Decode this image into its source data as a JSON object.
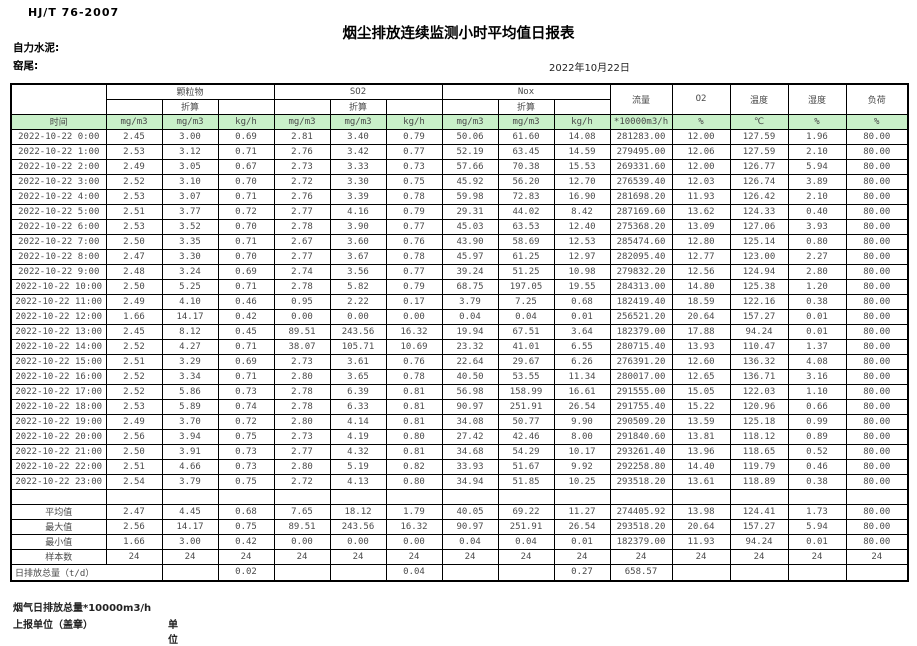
{
  "page": {
    "standard": "HJ/T 76-2007",
    "title": "烟尘排放连续监测小时平均值日报表",
    "company": "自力水泥:",
    "kiln": "窑尾:",
    "date": "2022年10月22日"
  },
  "table": {
    "time_header": "时间",
    "zhe_suan": "折算",
    "groups": {
      "pm": "颗粒物",
      "so2": "SO2",
      "nox": "Nox"
    },
    "single_cols": {
      "flow": "流量",
      "o2": "O2",
      "temp": "温度",
      "humidity": "湿度",
      "load": "负荷"
    },
    "units": [
      "mg/m3",
      "mg/m3",
      "kg/h",
      "mg/m3",
      "mg/m3",
      "kg/h",
      "mg/m3",
      "mg/m3",
      "kg/h",
      "*10000m3/h",
      "%",
      "℃",
      "%",
      "%"
    ],
    "rows": [
      [
        "2022-10-22 0:00",
        "2.45",
        "3.00",
        "0.69",
        "2.81",
        "3.40",
        "0.79",
        "50.06",
        "61.60",
        "14.08",
        "281283.00",
        "12.00",
        "127.59",
        "1.96",
        "80.00"
      ],
      [
        "2022-10-22 1:00",
        "2.53",
        "3.12",
        "0.71",
        "2.76",
        "3.42",
        "0.77",
        "52.19",
        "63.45",
        "14.59",
        "279495.00",
        "12.06",
        "127.59",
        "2.10",
        "80.00"
      ],
      [
        "2022-10-22 2:00",
        "2.49",
        "3.05",
        "0.67",
        "2.73",
        "3.33",
        "0.73",
        "57.66",
        "70.38",
        "15.53",
        "269331.60",
        "12.00",
        "126.77",
        "5.94",
        "80.00"
      ],
      [
        "2022-10-22 3:00",
        "2.52",
        "3.10",
        "0.70",
        "2.72",
        "3.30",
        "0.75",
        "45.92",
        "56.20",
        "12.70",
        "276539.40",
        "12.03",
        "126.74",
        "3.89",
        "80.00"
      ],
      [
        "2022-10-22 4:00",
        "2.53",
        "3.07",
        "0.71",
        "2.76",
        "3.39",
        "0.78",
        "59.98",
        "72.83",
        "16.90",
        "281698.20",
        "11.93",
        "126.42",
        "2.10",
        "80.00"
      ],
      [
        "2022-10-22 5:00",
        "2.51",
        "3.77",
        "0.72",
        "2.77",
        "4.16",
        "0.79",
        "29.31",
        "44.02",
        "8.42",
        "287169.60",
        "13.62",
        "124.33",
        "0.40",
        "80.00"
      ],
      [
        "2022-10-22 6:00",
        "2.53",
        "3.52",
        "0.70",
        "2.78",
        "3.90",
        "0.77",
        "45.03",
        "63.53",
        "12.40",
        "275368.20",
        "13.09",
        "127.06",
        "3.93",
        "80.00"
      ],
      [
        "2022-10-22 7:00",
        "2.50",
        "3.35",
        "0.71",
        "2.67",
        "3.60",
        "0.76",
        "43.90",
        "58.69",
        "12.53",
        "285474.60",
        "12.80",
        "125.14",
        "0.80",
        "80.00"
      ],
      [
        "2022-10-22 8:00",
        "2.47",
        "3.30",
        "0.70",
        "2.77",
        "3.67",
        "0.78",
        "45.97",
        "61.25",
        "12.97",
        "282095.40",
        "12.77",
        "123.00",
        "2.27",
        "80.00"
      ],
      [
        "2022-10-22 9:00",
        "2.48",
        "3.24",
        "0.69",
        "2.74",
        "3.56",
        "0.77",
        "39.24",
        "51.25",
        "10.98",
        "279832.20",
        "12.56",
        "124.94",
        "2.80",
        "80.00"
      ],
      [
        "2022-10-22 10:00",
        "2.50",
        "5.25",
        "0.71",
        "2.78",
        "5.82",
        "0.79",
        "68.75",
        "197.05",
        "19.55",
        "284313.00",
        "14.80",
        "125.38",
        "1.20",
        "80.00"
      ],
      [
        "2022-10-22 11:00",
        "2.49",
        "4.10",
        "0.46",
        "0.95",
        "2.22",
        "0.17",
        "3.79",
        "7.25",
        "0.68",
        "182419.40",
        "18.59",
        "122.16",
        "0.38",
        "80.00"
      ],
      [
        "2022-10-22 12:00",
        "1.66",
        "14.17",
        "0.42",
        "0.00",
        "0.00",
        "0.00",
        "0.04",
        "0.04",
        "0.01",
        "256521.20",
        "20.64",
        "157.27",
        "0.01",
        "80.00"
      ],
      [
        "2022-10-22 13:00",
        "2.45",
        "8.12",
        "0.45",
        "89.51",
        "243.56",
        "16.32",
        "19.94",
        "67.51",
        "3.64",
        "182379.00",
        "17.88",
        "94.24",
        "0.01",
        "80.00"
      ],
      [
        "2022-10-22 14:00",
        "2.52",
        "4.27",
        "0.71",
        "38.07",
        "105.71",
        "10.69",
        "23.32",
        "41.01",
        "6.55",
        "280715.40",
        "13.93",
        "110.47",
        "1.37",
        "80.00"
      ],
      [
        "2022-10-22 15:00",
        "2.51",
        "3.29",
        "0.69",
        "2.73",
        "3.61",
        "0.76",
        "22.64",
        "29.67",
        "6.26",
        "276391.20",
        "12.60",
        "136.32",
        "4.08",
        "80.00"
      ],
      [
        "2022-10-22 16:00",
        "2.52",
        "3.34",
        "0.71",
        "2.80",
        "3.65",
        "0.78",
        "40.50",
        "53.55",
        "11.34",
        "280017.00",
        "12.65",
        "136.71",
        "3.16",
        "80.00"
      ],
      [
        "2022-10-22 17:00",
        "2.52",
        "5.86",
        "0.73",
        "2.78",
        "6.39",
        "0.81",
        "56.98",
        "158.99",
        "16.61",
        "291555.00",
        "15.05",
        "122.03",
        "1.10",
        "80.00"
      ],
      [
        "2022-10-22 18:00",
        "2.53",
        "5.89",
        "0.74",
        "2.78",
        "6.33",
        "0.81",
        "90.97",
        "251.91",
        "26.54",
        "291755.40",
        "15.22",
        "120.96",
        "0.66",
        "80.00"
      ],
      [
        "2022-10-22 19:00",
        "2.49",
        "3.70",
        "0.72",
        "2.80",
        "4.14",
        "0.81",
        "34.08",
        "50.77",
        "9.90",
        "290509.20",
        "13.59",
        "125.18",
        "0.99",
        "80.00"
      ],
      [
        "2022-10-22 20:00",
        "2.56",
        "3.94",
        "0.75",
        "2.73",
        "4.19",
        "0.80",
        "27.42",
        "42.46",
        "8.00",
        "291840.60",
        "13.81",
        "118.12",
        "0.89",
        "80.00"
      ],
      [
        "2022-10-22 21:00",
        "2.50",
        "3.91",
        "0.73",
        "2.77",
        "4.32",
        "0.81",
        "34.68",
        "54.29",
        "10.17",
        "293261.40",
        "13.96",
        "118.65",
        "0.52",
        "80.00"
      ],
      [
        "2022-10-22 22:00",
        "2.51",
        "4.66",
        "0.73",
        "2.80",
        "5.19",
        "0.82",
        "33.93",
        "51.67",
        "9.92",
        "292258.80",
        "14.40",
        "119.79",
        "0.46",
        "80.00"
      ],
      [
        "2022-10-22 23:00",
        "2.54",
        "3.79",
        "0.75",
        "2.72",
        "4.13",
        "0.80",
        "34.94",
        "51.85",
        "10.25",
        "293518.20",
        "13.61",
        "118.89",
        "0.38",
        "80.00"
      ]
    ],
    "summary": [
      {
        "label": "平均值",
        "values": [
          "2.47",
          "4.45",
          "0.68",
          "7.65",
          "18.12",
          "1.79",
          "40.05",
          "69.22",
          "11.27",
          "274405.92",
          "13.98",
          "124.41",
          "1.73",
          "80.00"
        ]
      },
      {
        "label": "最大值",
        "values": [
          "2.56",
          "14.17",
          "0.75",
          "89.51",
          "243.56",
          "16.32",
          "90.97",
          "251.91",
          "26.54",
          "293518.20",
          "20.64",
          "157.27",
          "5.94",
          "80.00"
        ]
      },
      {
        "label": "最小值",
        "values": [
          "1.66",
          "3.00",
          "0.42",
          "0.00",
          "0.00",
          "0.00",
          "0.04",
          "0.04",
          "0.01",
          "182379.00",
          "11.93",
          "94.24",
          "0.01",
          "80.00"
        ]
      },
      {
        "label": "样本数",
        "values": [
          "24",
          "24",
          "24",
          "24",
          "24",
          "24",
          "24",
          "24",
          "24",
          "24",
          "24",
          "24",
          "24",
          "24"
        ]
      }
    ],
    "daily_total": {
      "label": "日排放总量（t/d）",
      "pm_kgh": "0.02",
      "so2_kgh": "0.04",
      "nox_kgh": "0.27",
      "flow": "658.57"
    }
  },
  "footer": {
    "line1": "烟气日排放总量*10000m3/h",
    "line2_left": "上报单位（盖章）",
    "line2_right": "单位"
  },
  "colors": {
    "units_row_green": "#c9f0c9",
    "border": "#000000",
    "table_text": "#4a4a4a"
  }
}
